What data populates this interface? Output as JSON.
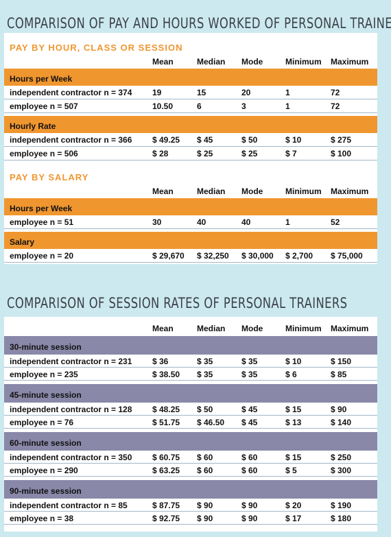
{
  "table1": {
    "title": "COMPARISON OF PAY AND HOURS WORKED OF PERSONAL TRAINERS",
    "sections": [
      {
        "heading": "PAY BY HOUR, CLASS OR SESSION",
        "columns": [
          "Mean",
          "Median",
          "Mode",
          "Minimum",
          "Maximum"
        ],
        "groups": [
          {
            "label": "Hours per Week",
            "rows": [
              {
                "label": "independent contractor n = 374",
                "cells": [
                  "19",
                  "15",
                  "20",
                  "1",
                  "72"
                ]
              },
              {
                "label": "employee n = 507",
                "cells": [
                  "10.50",
                  "6",
                  "3",
                  "1",
                  "72"
                ]
              }
            ]
          },
          {
            "label": "Hourly Rate",
            "rows": [
              {
                "label": "independent contractor n = 366",
                "cells": [
                  "$ 49.25",
                  "$ 45",
                  "$ 50",
                  "$ 10",
                  "$ 275"
                ]
              },
              {
                "label": "employee n = 506",
                "cells": [
                  "$ 28",
                  "$ 25",
                  "$ 25",
                  "$ 7",
                  "$ 100"
                ]
              }
            ]
          }
        ]
      },
      {
        "heading": "PAY BY SALARY",
        "columns": [
          "Mean",
          "Median",
          "Mode",
          "Minimum",
          "Maximum"
        ],
        "groups": [
          {
            "label": "Hours per Week",
            "rows": [
              {
                "label": "employee n = 51",
                "cells": [
                  "30",
                  "40",
                  "40",
                  "1",
                  "52"
                ]
              }
            ]
          },
          {
            "label": "Salary",
            "rows": [
              {
                "label": "employee n = 20",
                "cells": [
                  "$ 29,670",
                  "$ 32,250",
                  "$ 30,000",
                  "$ 2,700",
                  "$ 75,000"
                ]
              }
            ]
          }
        ]
      }
    ]
  },
  "table2": {
    "title": "COMPARISON OF SESSION RATES OF PERSONAL TRAINERS",
    "sections": [
      {
        "columns": [
          "Mean",
          "Median",
          "Mode",
          "Minimum",
          "Maximum"
        ],
        "groups": [
          {
            "label": "30-minute session",
            "rows": [
              {
                "label": "independent contractor n = 231",
                "cells": [
                  "$ 36",
                  "$ 35",
                  "$ 35",
                  "$ 10",
                  "$ 150"
                ]
              },
              {
                "label": "employee n = 235",
                "cells": [
                  "$ 38.50",
                  "$ 35",
                  "$ 35",
                  "$ 6",
                  "$ 85"
                ]
              }
            ]
          },
          {
            "label": "45-minute session",
            "rows": [
              {
                "label": "independent contractor n = 128",
                "cells": [
                  "$ 48.25",
                  "$ 50",
                  "$ 45",
                  "$ 15",
                  "$ 90"
                ]
              },
              {
                "label": "employee n = 76",
                "cells": [
                  "$ 51.75",
                  "$ 46.50",
                  "$ 45",
                  "$ 13",
                  "$ 140"
                ]
              }
            ]
          },
          {
            "label": "60-minute session",
            "rows": [
              {
                "label": "independent contractor n = 350",
                "cells": [
                  "$ 60.75",
                  "$ 60",
                  "$ 60",
                  "$ 15",
                  "$ 250"
                ]
              },
              {
                "label": "employee n = 290",
                "cells": [
                  "$ 63.25",
                  "$ 60",
                  "$ 60",
                  "$ 5",
                  "$ 300"
                ]
              }
            ]
          },
          {
            "label": "90-minute session",
            "rows": [
              {
                "label": "independent contractor n = 85",
                "cells": [
                  "$ 87.75",
                  "$ 90",
                  "$ 90",
                  "$ 20",
                  "$ 190"
                ]
              },
              {
                "label": "employee n = 38",
                "cells": [
                  "$ 92.75",
                  "$ 90",
                  "$ 90",
                  "$ 17",
                  "$ 180"
                ]
              }
            ]
          }
        ]
      }
    ]
  }
}
